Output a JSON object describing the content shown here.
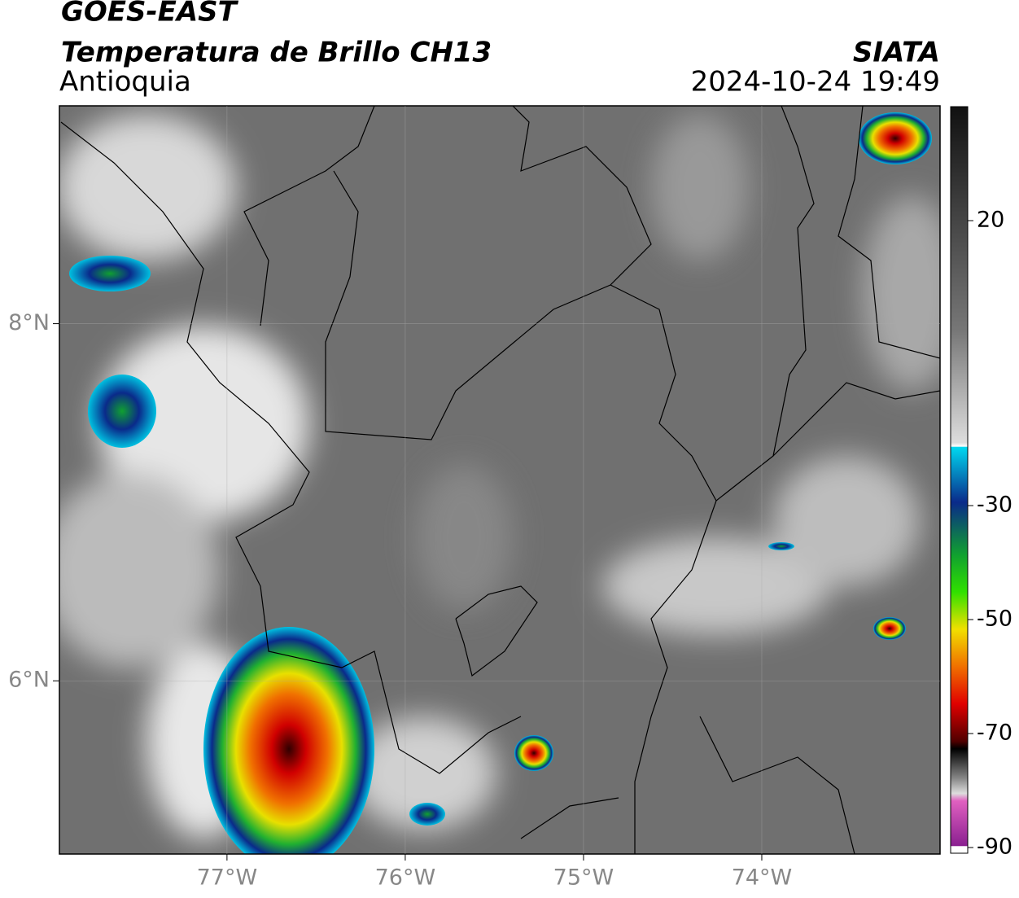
{
  "header": {
    "satellite": "GOES-EAST",
    "product": "Temperatura de Brillo CH13",
    "region": "Antioquia",
    "source": "SIATA",
    "datetime": "2024-10-24 19:49"
  },
  "map": {
    "xlim": [
      -77.94,
      -73.0
    ],
    "ylim": [
      5.03,
      9.22
    ],
    "xticks": [
      {
        "value": -77,
        "label": "77°W"
      },
      {
        "value": -76,
        "label": "76°W"
      },
      {
        "value": -75,
        "label": "75°W"
      },
      {
        "value": -74,
        "label": "74°W"
      }
    ],
    "yticks": [
      {
        "value": 8,
        "label": "8°N"
      },
      {
        "value": 6,
        "label": "6°N"
      }
    ],
    "grid": true
  },
  "colorbar": {
    "lim": [
      -91,
      40
    ],
    "ticks": [
      20,
      -30,
      -50,
      -70,
      -90
    ]
  }
}
